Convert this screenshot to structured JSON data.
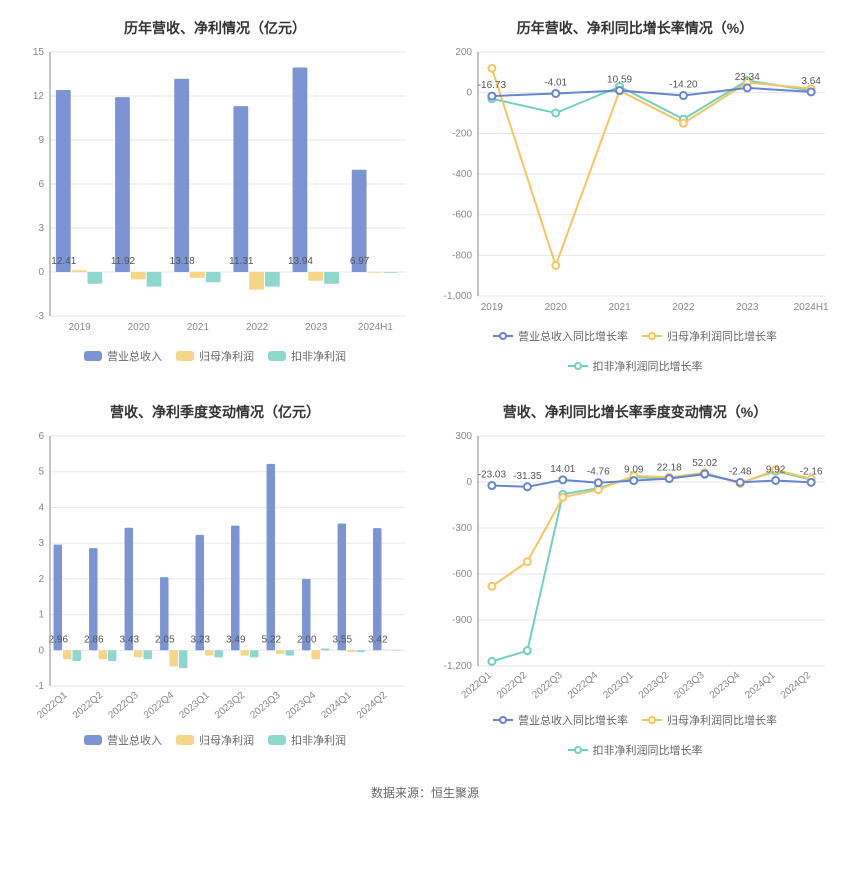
{
  "colors": {
    "bar_main": "#7a94d4",
    "bar_alt1": "#f6d587",
    "bar_alt2": "#8dd7cf",
    "line1": "#6684cf",
    "line2": "#f5c65c",
    "line3": "#72d0c3",
    "grid": "#e6e6e6",
    "axis": "#888888",
    "text": "#555555",
    "title": "#333333",
    "bg": "#ffffff"
  },
  "source_label": "数据来源：恒生聚源",
  "panels": {
    "tl": {
      "title": "历年营收、净利情况（亿元）",
      "type": "bar",
      "categories": [
        "2019",
        "2020",
        "2021",
        "2022",
        "2023",
        "2024H1"
      ],
      "ylim": [
        -3,
        15
      ],
      "ytick_step": 3,
      "series": [
        {
          "name": "营业总收入",
          "color_key": "bar_main",
          "values": [
            12.41,
            11.92,
            13.18,
            11.31,
            13.94,
            6.97
          ],
          "show_label": true
        },
        {
          "name": "归母净利润",
          "color_key": "bar_alt1",
          "values": [
            0.12,
            -0.5,
            -0.4,
            -1.2,
            -0.6,
            -0.05
          ],
          "show_label": false
        },
        {
          "name": "扣非净利润",
          "color_key": "bar_alt2",
          "values": [
            -0.8,
            -1.0,
            -0.7,
            -1.0,
            -0.8,
            -0.05
          ],
          "show_label": false
        }
      ],
      "legend": [
        {
          "label": "营业总收入",
          "color_key": "bar_main",
          "shape": "rect"
        },
        {
          "label": "归母净利润",
          "color_key": "bar_alt1",
          "shape": "rect"
        },
        {
          "label": "扣非净利润",
          "color_key": "bar_alt2",
          "shape": "rect"
        }
      ]
    },
    "tr": {
      "title": "历年营收、净利同比增长率情况（%）",
      "type": "line",
      "categories": [
        "2019",
        "2020",
        "2021",
        "2022",
        "2023",
        "2024H1"
      ],
      "ylim": [
        -1000,
        200
      ],
      "ytick_step": 200,
      "series": [
        {
          "name": "营业总收入同比增长率",
          "color_key": "line1",
          "values": [
            -16.73,
            -4.01,
            10.59,
            -14.2,
            23.34,
            3.64
          ]
        },
        {
          "name": "归母净利润同比增长率",
          "color_key": "line2",
          "values": [
            120,
            -850,
            10,
            -150,
            50,
            20
          ]
        },
        {
          "name": "扣非净利润同比增长率",
          "color_key": "line3",
          "values": [
            -30,
            -100,
            30,
            -130,
            60,
            10
          ]
        }
      ],
      "top_labels": [
        -16.73,
        -4.01,
        10.59,
        -14.2,
        23.34,
        3.64
      ],
      "legend": [
        {
          "label": "营业总收入同比增长率",
          "color_key": "line1",
          "shape": "line"
        },
        {
          "label": "归母净利润同比增长率",
          "color_key": "line2",
          "shape": "line"
        },
        {
          "label": "扣非净利润同比增长率",
          "color_key": "line3",
          "shape": "line"
        }
      ]
    },
    "bl": {
      "title": "营收、净利季度变动情况（亿元）",
      "type": "bar",
      "categories": [
        "2022Q1",
        "2022Q2",
        "2022Q3",
        "2022Q4",
        "2023Q1",
        "2023Q2",
        "2023Q3",
        "2023Q4",
        "2024Q1",
        "2024Q2"
      ],
      "ylim": [
        -1,
        6
      ],
      "ytick_step": 1,
      "rotate_x": true,
      "series": [
        {
          "name": "营业总收入",
          "color_key": "bar_main",
          "values": [
            2.96,
            2.86,
            3.43,
            2.05,
            3.23,
            3.49,
            5.22,
            2.0,
            3.55,
            3.42
          ],
          "show_label": true
        },
        {
          "name": "归母净利润",
          "color_key": "bar_alt1",
          "values": [
            -0.25,
            -0.25,
            -0.2,
            -0.45,
            -0.15,
            -0.15,
            -0.1,
            -0.25,
            -0.05,
            0.02
          ],
          "show_label": false
        },
        {
          "name": "扣非净利润",
          "color_key": "bar_alt2",
          "values": [
            -0.3,
            -0.3,
            -0.25,
            -0.5,
            -0.2,
            -0.2,
            -0.15,
            0.05,
            -0.05,
            0.01
          ],
          "show_label": false
        }
      ],
      "legend": [
        {
          "label": "营业总收入",
          "color_key": "bar_main",
          "shape": "rect"
        },
        {
          "label": "归母净利润",
          "color_key": "bar_alt1",
          "shape": "rect"
        },
        {
          "label": "扣非净利润",
          "color_key": "bar_alt2",
          "shape": "rect"
        }
      ]
    },
    "br": {
      "title": "营收、净利同比增长率季度变动情况（%）",
      "type": "line",
      "categories": [
        "2022Q1",
        "2022Q2",
        "2022Q3",
        "2022Q4",
        "2023Q1",
        "2023Q2",
        "2023Q3",
        "2023Q4",
        "2024Q1",
        "2024Q2"
      ],
      "ylim": [
        -1200,
        300
      ],
      "ytick_step": 300,
      "rotate_x": true,
      "series": [
        {
          "name": "营业总收入同比增长率",
          "color_key": "line1",
          "values": [
            -23.03,
            -31.35,
            14.01,
            -4.76,
            9.09,
            22.18,
            52.02,
            -2.48,
            9.92,
            -2.16
          ]
        },
        {
          "name": "归母净利润同比增长率",
          "color_key": "line2",
          "values": [
            -680,
            -520,
            -100,
            -50,
            40,
            30,
            60,
            -10,
            80,
            20
          ]
        },
        {
          "name": "扣非净利润同比增长率",
          "color_key": "line3",
          "values": [
            -1170,
            -1100,
            -80,
            -40,
            30,
            25,
            50,
            -5,
            70,
            15
          ]
        }
      ],
      "top_labels": [
        -23.03,
        -31.35,
        14.01,
        -4.76,
        9.09,
        22.18,
        52.02,
        -2.48,
        9.92,
        -2.16
      ],
      "legend": [
        {
          "label": "营业总收入同比增长率",
          "color_key": "line1",
          "shape": "line"
        },
        {
          "label": "归母净利润同比增长率",
          "color_key": "line2",
          "shape": "line"
        },
        {
          "label": "扣非净利润同比增长率",
          "color_key": "line3",
          "shape": "line"
        }
      ]
    }
  }
}
